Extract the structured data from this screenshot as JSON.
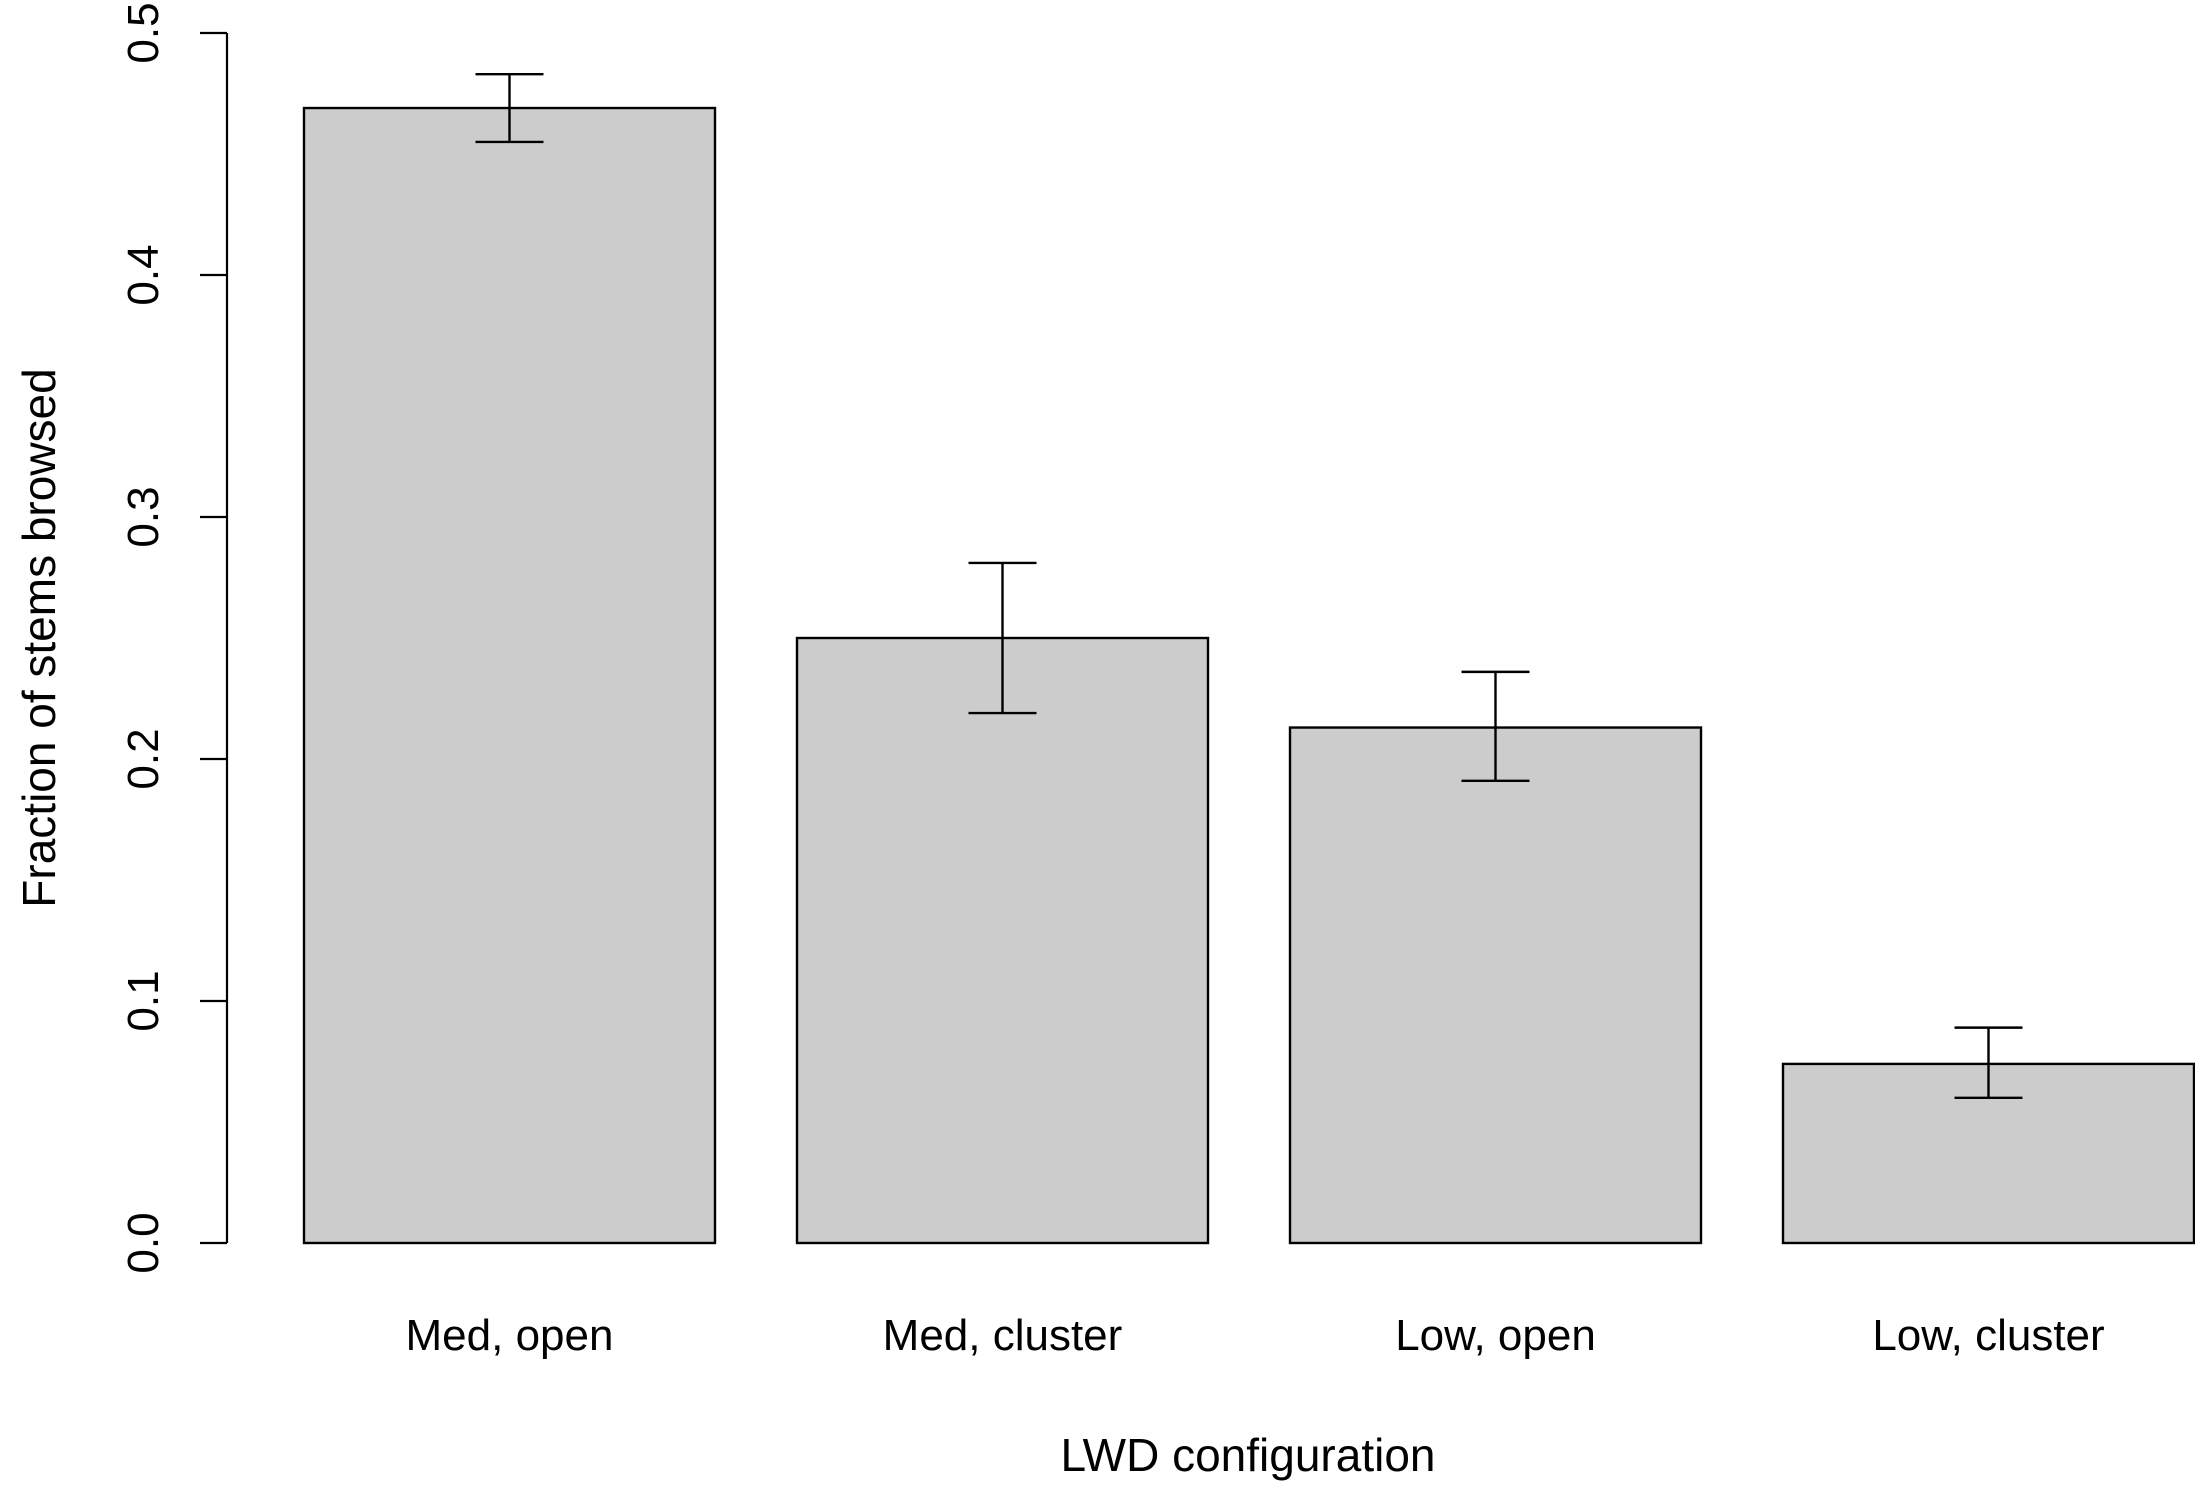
{
  "chart_data": {
    "type": "bar",
    "title": "",
    "xlabel": "LWD configuration",
    "ylabel": "Fraction of stems browsed",
    "categories": [
      "Med, open",
      "Med, cluster",
      "Low, open",
      "Low, cluster"
    ],
    "values": [
      0.469,
      0.25,
      0.213,
      0.074
    ],
    "error_upper": [
      0.483,
      0.281,
      0.236,
      0.089
    ],
    "error_lower": [
      0.455,
      0.219,
      0.191,
      0.06
    ],
    "ylim": [
      0,
      0.5
    ],
    "yticks": [
      0.0,
      0.1,
      0.2,
      0.3,
      0.4,
      0.5
    ],
    "ytick_labels": [
      "0.0",
      "0.1",
      "0.2",
      "0.3",
      "0.4",
      "0.5"
    ],
    "grid": false,
    "bar_color": "#cccccc",
    "edge_color": "#000000"
  }
}
